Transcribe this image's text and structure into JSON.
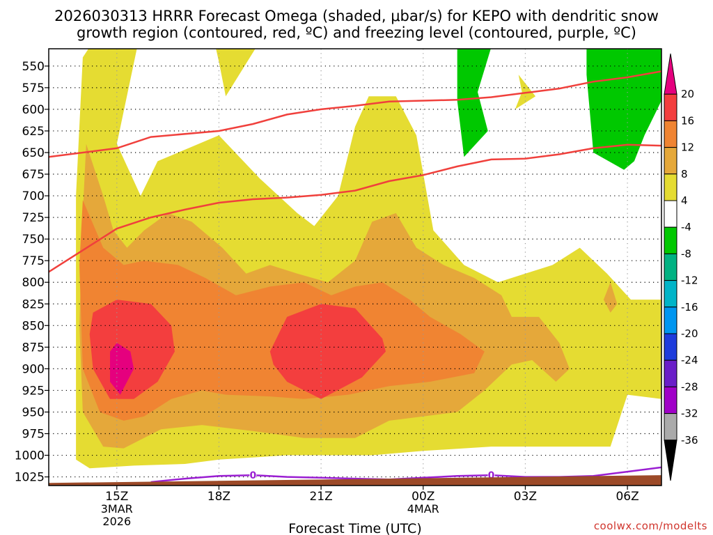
{
  "chart_data": {
    "type": "heatmap",
    "title_line1": "2026030313 HRRR Forecast Omega (shaded, μbar/s) for KEPO with dendritic snow",
    "title_line2": "growth region (contoured, red, ºC) and freezing level (contoured, purple, ºC)",
    "xlabel": "Forecast Time (UTC)",
    "ylabel": "",
    "credit": "coolwx.com/modelts",
    "x_range_hours": [
      0,
      18
    ],
    "x_ticks": [
      {
        "hour": 2,
        "label": "15Z",
        "sub1": "3MAR",
        "sub2": "2026"
      },
      {
        "hour": 5,
        "label": "18Z",
        "sub1": "",
        "sub2": ""
      },
      {
        "hour": 8,
        "label": "21Z",
        "sub1": "",
        "sub2": ""
      },
      {
        "hour": 11,
        "label": "00Z",
        "sub1": "4MAR",
        "sub2": ""
      },
      {
        "hour": 14,
        "label": "03Z",
        "sub1": "",
        "sub2": ""
      },
      {
        "hour": 17,
        "label": "06Z",
        "sub1": "",
        "sub2": ""
      }
    ],
    "y_range_mb": [
      530,
      1035
    ],
    "y_ticks": [
      550,
      575,
      600,
      625,
      650,
      675,
      700,
      725,
      750,
      775,
      800,
      825,
      850,
      875,
      900,
      925,
      950,
      975,
      1000,
      1025
    ],
    "colorbar": {
      "labels": [
        "20",
        "16",
        "12",
        "8",
        "4",
        "-4",
        "-8",
        "-12",
        "-16",
        "-20",
        "-24",
        "-28",
        "-32",
        "-36"
      ],
      "colors": [
        "#e5007e",
        "#f33e3e",
        "#f08432",
        "#e5a83a",
        "#e5dc32",
        "#ffffff",
        "#00c800",
        "#00b282",
        "#00b4c8",
        "#0096f0",
        "#1e3cdc",
        "#6a1ec8",
        "#a000c8",
        "#aaaaaa",
        "#000000"
      ]
    },
    "dgz_upper_temp_C": -12,
    "dgz_lower_temp_C": -18,
    "dgz_upper_mb": [
      [
        0,
        655
      ],
      [
        2,
        645
      ],
      [
        3,
        632
      ],
      [
        5,
        625
      ],
      [
        6,
        617
      ],
      [
        7,
        606
      ],
      [
        8,
        600
      ],
      [
        9,
        596
      ],
      [
        10,
        591
      ],
      [
        11,
        590
      ],
      [
        12,
        589
      ],
      [
        13,
        586
      ],
      [
        14,
        581
      ],
      [
        15,
        576
      ],
      [
        16,
        568
      ],
      [
        17,
        563
      ],
      [
        18,
        556
      ]
    ],
    "dgz_lower_mb": [
      [
        0,
        788
      ],
      [
        2,
        738
      ],
      [
        3,
        725
      ],
      [
        4,
        716
      ],
      [
        5,
        708
      ],
      [
        6,
        704
      ],
      [
        7,
        702
      ],
      [
        8,
        699
      ],
      [
        9,
        694
      ],
      [
        10,
        683
      ],
      [
        11,
        676
      ],
      [
        12,
        666
      ],
      [
        13,
        658
      ],
      [
        14,
        657
      ],
      [
        15,
        652
      ],
      [
        16,
        645
      ],
      [
        17,
        641
      ],
      [
        18,
        642
      ]
    ],
    "freezing_level_mb": [
      [
        3,
        1031
      ],
      [
        4,
        1027
      ],
      [
        5,
        1024
      ],
      [
        6,
        1023
      ],
      [
        7,
        1025
      ],
      [
        8,
        1026
      ],
      [
        9,
        1027
      ],
      [
        10,
        1028
      ],
      [
        11,
        1026
      ],
      [
        12,
        1024
      ],
      [
        13,
        1023
      ],
      [
        14,
        1025
      ],
      [
        15,
        1025
      ],
      [
        16,
        1024
      ],
      [
        17,
        1019
      ],
      [
        18,
        1014
      ]
    ],
    "freezing_level_value_label": "0",
    "freezing_label_hours": [
      6,
      13
    ],
    "surface_pressure_mb": [
      [
        0,
        1032
      ],
      [
        18,
        1023
      ]
    ],
    "omega_regions": [
      {
        "level": 4,
        "color": "#e5dc32",
        "points": [
          [
            1.2,
            528
          ],
          [
            2.6,
            528
          ],
          [
            2.0,
            640
          ],
          [
            2.7,
            700
          ],
          [
            3.2,
            660
          ],
          [
            4.4,
            640
          ],
          [
            5.0,
            630
          ],
          [
            6.2,
            680
          ],
          [
            7.3,
            720
          ],
          [
            7.8,
            735
          ],
          [
            8.5,
            700
          ],
          [
            9.0,
            620
          ],
          [
            9.4,
            585
          ],
          [
            10.2,
            585
          ],
          [
            10.8,
            630
          ],
          [
            11.3,
            740
          ],
          [
            12.2,
            780
          ],
          [
            13.2,
            800
          ],
          [
            14.0,
            790
          ],
          [
            14.8,
            780
          ],
          [
            15.6,
            760
          ],
          [
            16.4,
            790
          ],
          [
            17.1,
            820
          ],
          [
            18.0,
            820
          ],
          [
            18.0,
            935
          ],
          [
            17.0,
            930
          ],
          [
            16.5,
            990
          ],
          [
            15.5,
            990
          ],
          [
            13.0,
            990
          ],
          [
            11.0,
            995
          ],
          [
            9.5,
            1000
          ],
          [
            7.0,
            1000
          ],
          [
            5.0,
            1005
          ],
          [
            4.0,
            1010
          ],
          [
            2.5,
            1012
          ],
          [
            1.2,
            1015
          ],
          [
            0.8,
            1005
          ],
          [
            0.8,
            700
          ],
          [
            1.0,
            540
          ]
        ]
      },
      {
        "level": 4,
        "color": "#e5dc32",
        "points": [
          [
            4.9,
            528
          ],
          [
            6.1,
            528
          ],
          [
            5.2,
            585
          ],
          [
            5.0,
            545
          ]
        ]
      },
      {
        "level": 4,
        "color": "#e5dc32",
        "points": [
          [
            13.8,
            560
          ],
          [
            14.3,
            585
          ],
          [
            13.7,
            600
          ],
          [
            13.9,
            580
          ]
        ]
      },
      {
        "level": 8,
        "color": "#e5a83a",
        "points": [
          [
            1.1,
            640
          ],
          [
            1.6,
            700
          ],
          [
            1.9,
            740
          ],
          [
            2.3,
            760
          ],
          [
            2.8,
            740
          ],
          [
            3.5,
            720
          ],
          [
            4.2,
            730
          ],
          [
            5.1,
            760
          ],
          [
            5.8,
            790
          ],
          [
            6.5,
            780
          ],
          [
            7.3,
            790
          ],
          [
            8.2,
            800
          ],
          [
            9.0,
            775
          ],
          [
            9.5,
            730
          ],
          [
            10.2,
            720
          ],
          [
            10.8,
            760
          ],
          [
            11.6,
            780
          ],
          [
            12.5,
            795
          ],
          [
            13.3,
            815
          ],
          [
            13.6,
            840
          ],
          [
            14.4,
            840
          ],
          [
            15.0,
            870
          ],
          [
            15.3,
            900
          ],
          [
            14.9,
            915
          ],
          [
            14.2,
            890
          ],
          [
            13.6,
            895
          ],
          [
            12.8,
            925
          ],
          [
            12.0,
            950
          ],
          [
            11.0,
            955
          ],
          [
            10.0,
            960
          ],
          [
            9.0,
            980
          ],
          [
            7.5,
            980
          ],
          [
            6.0,
            972
          ],
          [
            4.5,
            965
          ],
          [
            3.3,
            970
          ],
          [
            2.2,
            992
          ],
          [
            1.6,
            990
          ],
          [
            1.0,
            950
          ],
          [
            0.9,
            850
          ],
          [
            1.0,
            720
          ]
        ]
      },
      {
        "level": 8,
        "color": "#e5a83a",
        "points": [
          [
            16.5,
            800
          ],
          [
            16.7,
            825
          ],
          [
            16.5,
            835
          ],
          [
            16.3,
            820
          ]
        ]
      },
      {
        "level": 12,
        "color": "#f08432",
        "points": [
          [
            1.0,
            705
          ],
          [
            1.6,
            760
          ],
          [
            2.2,
            780
          ],
          [
            2.8,
            775
          ],
          [
            3.8,
            780
          ],
          [
            4.6,
            795
          ],
          [
            5.5,
            815
          ],
          [
            6.5,
            805
          ],
          [
            7.5,
            800
          ],
          [
            8.3,
            815
          ],
          [
            9.0,
            805
          ],
          [
            9.8,
            800
          ],
          [
            10.6,
            820
          ],
          [
            11.2,
            840
          ],
          [
            12.1,
            860
          ],
          [
            12.8,
            880
          ],
          [
            12.5,
            905
          ],
          [
            11.2,
            915
          ],
          [
            10.0,
            920
          ],
          [
            8.8,
            930
          ],
          [
            7.5,
            935
          ],
          [
            6.5,
            932
          ],
          [
            5.2,
            930
          ],
          [
            4.5,
            925
          ],
          [
            3.6,
            935
          ],
          [
            2.8,
            955
          ],
          [
            2.2,
            960
          ],
          [
            1.5,
            950
          ],
          [
            1.0,
            900
          ],
          [
            0.9,
            780
          ]
        ]
      },
      {
        "level": 16,
        "color": "#f33e3e",
        "points": [
          [
            1.3,
            835
          ],
          [
            2.0,
            820
          ],
          [
            3.0,
            825
          ],
          [
            3.6,
            850
          ],
          [
            3.7,
            880
          ],
          [
            3.2,
            915
          ],
          [
            2.5,
            935
          ],
          [
            1.8,
            935
          ],
          [
            1.3,
            900
          ],
          [
            1.2,
            860
          ]
        ]
      },
      {
        "level": 16,
        "color": "#f33e3e",
        "points": [
          [
            6.5,
            880
          ],
          [
            7.0,
            840
          ],
          [
            8.0,
            825
          ],
          [
            9.0,
            830
          ],
          [
            9.8,
            865
          ],
          [
            9.9,
            880
          ],
          [
            9.2,
            910
          ],
          [
            8.0,
            935
          ],
          [
            7.0,
            915
          ],
          [
            6.6,
            895
          ]
        ]
      },
      {
        "level": 20,
        "color": "#e5007e",
        "points": [
          [
            2.0,
            870
          ],
          [
            2.4,
            880
          ],
          [
            2.5,
            900
          ],
          [
            2.1,
            930
          ],
          [
            1.8,
            915
          ],
          [
            1.8,
            880
          ]
        ]
      },
      {
        "level": -4,
        "color": "#00c800",
        "points": [
          [
            12.0,
            528
          ],
          [
            13.0,
            528
          ],
          [
            12.6,
            580
          ],
          [
            12.9,
            625
          ],
          [
            12.2,
            655
          ],
          [
            12.0,
            590
          ]
        ]
      },
      {
        "level": -4,
        "color": "#00c800",
        "points": [
          [
            15.8,
            528
          ],
          [
            18.0,
            528
          ],
          [
            18.0,
            590
          ],
          [
            17.5,
            630
          ],
          [
            17.2,
            660
          ],
          [
            16.9,
            670
          ],
          [
            16.0,
            650
          ],
          [
            15.8,
            560
          ]
        ]
      }
    ]
  }
}
